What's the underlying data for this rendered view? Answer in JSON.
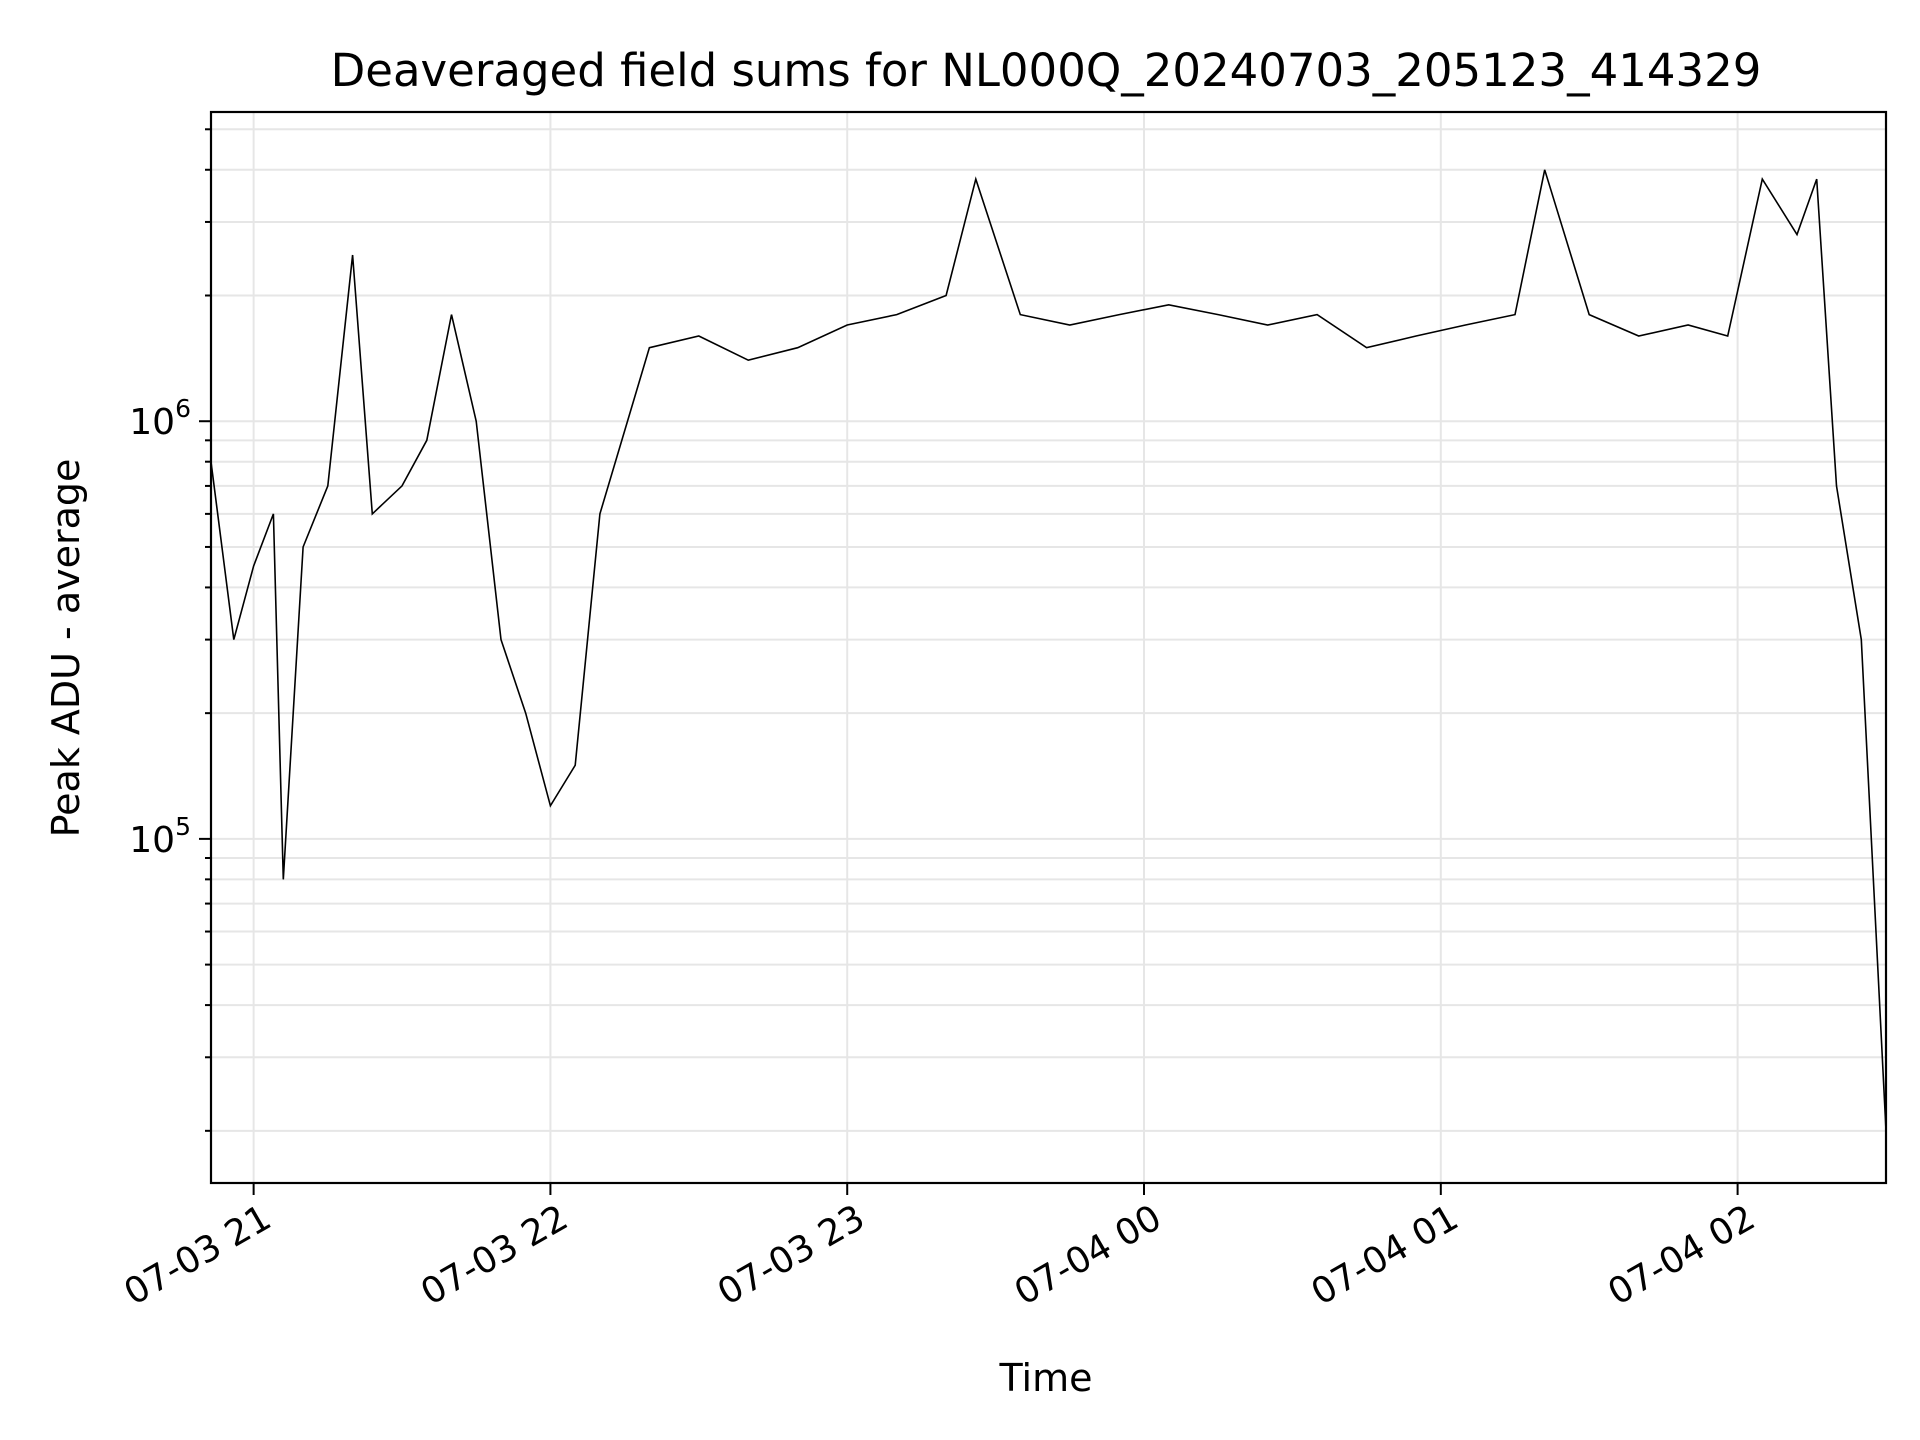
{
  "chart_data": {
    "type": "line",
    "title": "Deaveraged field sums for NL000Q_20240703_205123_414329",
    "xlabel": "Time",
    "ylabel": "Peak ADU - average",
    "y_scale": "log",
    "ylim": [
      15000,
      5500000
    ],
    "xlim": [
      "2024-07-03 20:51:23",
      "2024-07-04 02:30:00"
    ],
    "grid": true,
    "line_color": "#000000",
    "x_ticks": [
      {
        "label": "07-03 21",
        "time": "2024-07-03 21:00"
      },
      {
        "label": "07-03 22",
        "time": "2024-07-03 22:00"
      },
      {
        "label": "07-03 23",
        "time": "2024-07-03 23:00"
      },
      {
        "label": "07-04 00",
        "time": "2024-07-04 00:00"
      },
      {
        "label": "07-04 01",
        "time": "2024-07-04 01:00"
      },
      {
        "label": "07-04 02",
        "time": "2024-07-04 02:00"
      }
    ],
    "y_ticks": [
      {
        "base": "10",
        "exp": "5",
        "value": 100000
      },
      {
        "base": "10",
        "exp": "6",
        "value": 1000000
      }
    ],
    "series": [
      {
        "x": [
          "2024-07-03 20:51:23",
          "2024-07-03 20:56:00",
          "2024-07-03 21:00:00",
          "2024-07-03 21:04:00",
          "2024-07-03 21:06:00",
          "2024-07-03 21:10:00",
          "2024-07-03 21:15:00",
          "2024-07-03 21:20:00",
          "2024-07-03 21:24:00",
          "2024-07-03 21:30:00",
          "2024-07-03 21:35:00",
          "2024-07-03 21:40:00",
          "2024-07-03 21:45:00",
          "2024-07-03 21:50:00",
          "2024-07-03 21:55:00",
          "2024-07-03 22:00:00",
          "2024-07-03 22:05:00",
          "2024-07-03 22:10:00",
          "2024-07-03 22:20:00",
          "2024-07-03 22:30:00",
          "2024-07-03 22:40:00",
          "2024-07-03 22:50:00",
          "2024-07-03 23:00:00",
          "2024-07-03 23:10:00",
          "2024-07-03 23:20:00",
          "2024-07-03 23:26:00",
          "2024-07-03 23:35:00",
          "2024-07-03 23:45:00",
          "2024-07-03 23:55:00",
          "2024-07-04 00:05:00",
          "2024-07-04 00:15:00",
          "2024-07-04 00:25:00",
          "2024-07-04 00:35:00",
          "2024-07-04 00:45:00",
          "2024-07-04 00:55:00",
          "2024-07-04 01:05:00",
          "2024-07-04 01:15:00",
          "2024-07-04 01:21:00",
          "2024-07-04 01:30:00",
          "2024-07-04 01:40:00",
          "2024-07-04 01:50:00",
          "2024-07-04 01:58:00",
          "2024-07-04 02:05:00",
          "2024-07-04 02:12:00",
          "2024-07-04 02:16:00",
          "2024-07-04 02:20:00",
          "2024-07-04 02:25:00",
          "2024-07-04 02:30:00"
        ],
        "y": [
          800000,
          300000,
          450000,
          600000,
          80000,
          500000,
          700000,
          2500000,
          600000,
          700000,
          900000,
          1800000,
          1000000,
          300000,
          200000,
          120000,
          150000,
          600000,
          1500000,
          1600000,
          1400000,
          1500000,
          1700000,
          1800000,
          2000000,
          3800000,
          1800000,
          1700000,
          1800000,
          1900000,
          1800000,
          1700000,
          1800000,
          1500000,
          1600000,
          1700000,
          1800000,
          4000000,
          1800000,
          1600000,
          1700000,
          1600000,
          3800000,
          2800000,
          3800000,
          700000,
          300000,
          20000
        ]
      }
    ]
  }
}
